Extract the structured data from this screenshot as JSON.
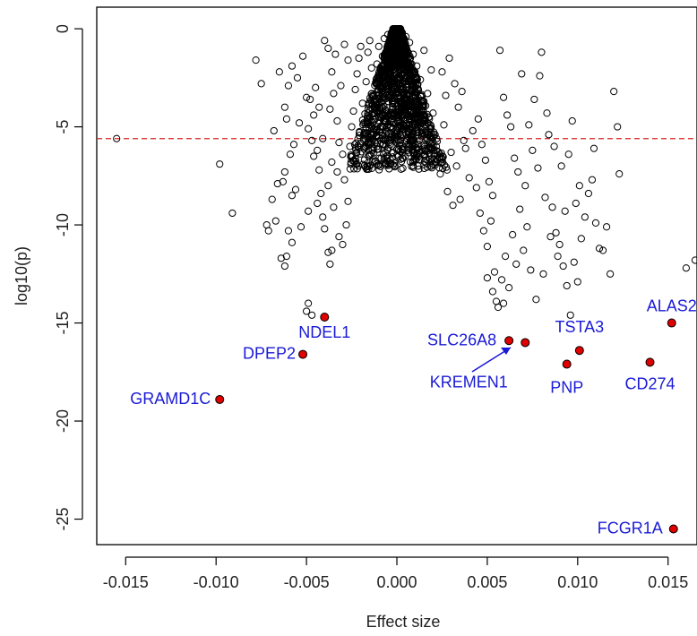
{
  "chart_data": {
    "type": "scatter",
    "title": "",
    "xlabel": "Effect size",
    "ylabel": "log10(p)",
    "xlim": [
      -0.0166,
      0.0166
    ],
    "ylim": [
      -26.3,
      1.1
    ],
    "xticks": [
      {
        "value": -0.015,
        "label": "-0.015"
      },
      {
        "value": -0.01,
        "label": "-0.010"
      },
      {
        "value": -0.005,
        "label": "-0.005"
      },
      {
        "value": 0.0,
        "label": "0.000"
      },
      {
        "value": 0.005,
        "label": "0.005"
      },
      {
        "value": 0.01,
        "label": "0.010"
      },
      {
        "value": 0.015,
        "label": "0.015"
      }
    ],
    "yticks": [
      {
        "value": 0,
        "label": "0"
      },
      {
        "value": -5,
        "label": "-5"
      },
      {
        "value": -10,
        "label": "-10"
      },
      {
        "value": -15,
        "label": "-15"
      },
      {
        "value": -20,
        "label": "-20"
      },
      {
        "value": -25,
        "label": "-25"
      }
    ],
    "threshold": -5.6,
    "grid": false,
    "colors": {
      "open_point": "#000000",
      "highlight_fill": "#e00000",
      "label": "#1a1ad6",
      "threshold": "#d62020"
    },
    "highlighted": [
      {
        "gene": "NDEL1",
        "x": -0.004,
        "y": -14.7
      },
      {
        "gene": "DPEP2",
        "x": -0.0052,
        "y": -16.6
      },
      {
        "gene": "GRAMD1C",
        "x": -0.0098,
        "y": -18.9
      },
      {
        "gene": "SLC26A8",
        "x": 0.0062,
        "y": -15.9
      },
      {
        "gene": "KREMEN1",
        "x": 0.0071,
        "y": -16.0
      },
      {
        "gene": "TSTA3",
        "x": 0.0101,
        "y": -16.4
      },
      {
        "gene": "PNP",
        "x": 0.0094,
        "y": -17.1
      },
      {
        "gene": "CD274",
        "x": 0.014,
        "y": -17.0
      },
      {
        "gene": "ALAS2",
        "x": 0.0152,
        "y": -15.0
      },
      {
        "gene": "FCGR1A",
        "x": 0.0153,
        "y": -25.5
      }
    ],
    "points": [
      [
        -0.0155,
        -5.6
      ],
      [
        -0.0091,
        -9.4
      ],
      [
        -0.0098,
        -6.9
      ],
      [
        -0.0078,
        -1.6
      ],
      [
        -0.0075,
        -2.8
      ],
      [
        -0.0072,
        -10.0
      ],
      [
        -0.0071,
        -10.3
      ],
      [
        -0.006,
        -2.9
      ],
      [
        -0.0062,
        -4.0
      ],
      [
        -0.0058,
        -1.9
      ],
      [
        -0.0055,
        -2.5
      ],
      [
        -0.0052,
        -1.4
      ],
      [
        -0.0056,
        -8.2
      ],
      [
        -0.0058,
        -8.5
      ],
      [
        -0.0062,
        -7.3
      ],
      [
        -0.0063,
        -7.8
      ],
      [
        -0.0058,
        -10.9
      ],
      [
        -0.0064,
        -11.7
      ],
      [
        -0.0062,
        -12.1
      ],
      [
        -0.0061,
        -11.6
      ],
      [
        -0.006,
        -10.3
      ],
      [
        -0.0053,
        -10.1
      ],
      [
        -0.0049,
        -9.3
      ],
      [
        -0.005,
        -14.4
      ],
      [
        -0.0049,
        -14.0
      ],
      [
        -0.0047,
        -14.6
      ],
      [
        -0.0049,
        -5.1
      ],
      [
        -0.0047,
        -5.7
      ],
      [
        -0.0046,
        -6.5
      ],
      [
        -0.0044,
        -6.2
      ],
      [
        -0.0043,
        -7.2
      ],
      [
        -0.0042,
        -8.4
      ],
      [
        -0.004,
        -10.2
      ],
      [
        -0.0038,
        -11.4
      ],
      [
        -0.0037,
        -12.0
      ],
      [
        -0.0036,
        -11.3
      ],
      [
        -0.0035,
        -9.1
      ],
      [
        -0.0032,
        -10.6
      ],
      [
        -0.003,
        -11.0
      ],
      [
        -0.0028,
        -10.0
      ],
      [
        -0.0033,
        -7.3
      ],
      [
        -0.0036,
        -6.8
      ],
      [
        -0.0038,
        -8.0
      ],
      [
        -0.0041,
        -9.6
      ],
      [
        -0.0044,
        -8.9
      ],
      [
        -0.0046,
        -4.4
      ],
      [
        -0.0048,
        -3.6
      ],
      [
        -0.0045,
        -3.0
      ],
      [
        -0.0043,
        -4.0
      ],
      [
        -0.0041,
        -5.6
      ],
      [
        -0.004,
        -0.6
      ],
      [
        -0.0038,
        -1.0
      ],
      [
        -0.0036,
        -2.2
      ],
      [
        -0.0035,
        -3.3
      ],
      [
        -0.0033,
        -4.7
      ],
      [
        -0.0032,
        -5.8
      ],
      [
        -0.003,
        -6.4
      ],
      [
        -0.0029,
        -7.7
      ],
      [
        -0.0027,
        -8.8
      ],
      [
        -0.0026,
        -6.0
      ],
      [
        -0.0025,
        -5.0
      ],
      [
        -0.0024,
        -4.2
      ],
      [
        -0.0023,
        -3.1
      ],
      [
        -0.0022,
        -2.3
      ],
      [
        -0.0021,
        -1.5
      ],
      [
        -0.002,
        -0.9
      ],
      [
        -0.0019,
        -3.8
      ],
      [
        -0.0018,
        -5.3
      ],
      [
        -0.0017,
        -2.7
      ],
      [
        -0.0016,
        -1.2
      ],
      [
        -0.0015,
        -0.6
      ],
      [
        -0.0014,
        -2.0
      ],
      [
        -0.0013,
        -3.4
      ],
      [
        -0.0012,
        -4.6
      ],
      [
        -0.0011,
        -1.8
      ],
      [
        -0.001,
        -0.9
      ],
      [
        -0.0009,
        -2.6
      ],
      [
        -0.0008,
        -1.4
      ],
      [
        -0.0007,
        -0.5
      ],
      [
        -0.0006,
        -1.7
      ],
      [
        -0.0005,
        -0.3
      ],
      [
        -0.0004,
        -1.0
      ],
      [
        -0.0003,
        -0.2
      ],
      [
        -0.0002,
        -0.6
      ],
      [
        -0.0001,
        -0.1
      ],
      [
        0.0001,
        -0.1
      ],
      [
        0.0002,
        -0.5
      ],
      [
        0.0003,
        -0.2
      ],
      [
        0.0004,
        -1.1
      ],
      [
        0.0005,
        -0.4
      ],
      [
        0.0006,
        -1.8
      ],
      [
        0.0007,
        -0.7
      ],
      [
        0.0008,
        -2.4
      ],
      [
        0.0009,
        -1.3
      ],
      [
        0.001,
        -3.0
      ],
      [
        0.0011,
        -1.9
      ],
      [
        0.0012,
        -3.9
      ],
      [
        0.0013,
        -2.6
      ],
      [
        0.0014,
        -4.6
      ],
      [
        0.0015,
        -1.1
      ],
      [
        0.0016,
        -5.2
      ],
      [
        0.0017,
        -3.3
      ],
      [
        0.0018,
        -6.0
      ],
      [
        0.0019,
        -2.1
      ],
      [
        0.002,
        -4.3
      ],
      [
        -0.0027,
        -1.6
      ],
      [
        -0.0029,
        -0.8
      ],
      [
        -0.0031,
        -2.9
      ],
      [
        -0.0034,
        -1.3
      ],
      [
        -0.0037,
        -4.1
      ],
      [
        0.002,
        -6.9
      ],
      [
        0.0022,
        -5.6
      ],
      [
        0.0024,
        -7.4
      ],
      [
        0.0026,
        -4.9
      ],
      [
        0.0028,
        -8.3
      ],
      [
        0.003,
        -6.3
      ],
      [
        0.0031,
        -9.0
      ],
      [
        0.0033,
        -7.0
      ],
      [
        0.0035,
        -8.7
      ],
      [
        0.0037,
        -5.7
      ],
      [
        0.0025,
        -2.2
      ],
      [
        0.0027,
        -3.4
      ],
      [
        0.0029,
        -1.5
      ],
      [
        0.0032,
        -2.8
      ],
      [
        0.0034,
        -4.0
      ],
      [
        0.0036,
        -3.2
      ],
      [
        0.0038,
        -6.1
      ],
      [
        0.004,
        -7.6
      ],
      [
        0.0042,
        -5.2
      ],
      [
        0.0044,
        -8.1
      ],
      [
        0.0046,
        -9.4
      ],
      [
        0.0048,
        -10.3
      ],
      [
        0.005,
        -11.1
      ],
      [
        0.0052,
        -9.8
      ],
      [
        0.0054,
        -12.4
      ],
      [
        0.0055,
        -13.9
      ],
      [
        0.0056,
        -14.2
      ],
      [
        0.0058,
        -12.8
      ],
      [
        0.006,
        -11.6
      ],
      [
        0.0062,
        -13.2
      ],
      [
        0.0064,
        -10.5
      ],
      [
        0.0066,
        -12.0
      ],
      [
        0.0068,
        -9.2
      ],
      [
        0.007,
        -11.3
      ],
      [
        0.0072,
        -10.1
      ],
      [
        0.0045,
        -4.6
      ],
      [
        0.0047,
        -5.9
      ],
      [
        0.0049,
        -6.7
      ],
      [
        0.0051,
        -7.8
      ],
      [
        0.0053,
        -8.5
      ],
      [
        0.0057,
        -1.1
      ],
      [
        0.0059,
        -3.5
      ],
      [
        0.0061,
        -4.4
      ],
      [
        0.0063,
        -5.0
      ],
      [
        0.0065,
        -6.6
      ],
      [
        0.0067,
        -7.3
      ],
      [
        0.0069,
        -2.3
      ],
      [
        0.0071,
        -8.0
      ],
      [
        0.0073,
        -4.9
      ],
      [
        0.0075,
        -6.2
      ],
      [
        0.0076,
        -3.6
      ],
      [
        0.0078,
        -7.1
      ],
      [
        0.008,
        -1.2
      ],
      [
        0.0082,
        -8.6
      ],
      [
        0.0084,
        -5.4
      ],
      [
        0.0086,
        -9.1
      ],
      [
        0.0088,
        -10.4
      ],
      [
        0.009,
        -11.0
      ],
      [
        0.0092,
        -12.1
      ],
      [
        0.0094,
        -13.1
      ],
      [
        0.0096,
        -14.6
      ],
      [
        0.0098,
        -11.9
      ],
      [
        0.01,
        -12.9
      ],
      [
        0.0102,
        -10.7
      ],
      [
        0.0104,
        -9.6
      ],
      [
        0.0106,
        -8.4
      ],
      [
        0.0108,
        -7.7
      ],
      [
        0.011,
        -9.9
      ],
      [
        0.0112,
        -11.2
      ],
      [
        0.0114,
        -11.3
      ],
      [
        0.0116,
        -10.1
      ],
      [
        0.0118,
        -12.5
      ],
      [
        0.012,
        -3.2
      ],
      [
        0.0122,
        -5.0
      ],
      [
        0.0123,
        -7.4
      ],
      [
        0.0079,
        -2.4
      ],
      [
        0.0083,
        -4.3
      ],
      [
        0.0087,
        -6.0
      ],
      [
        0.0091,
        -7.0
      ],
      [
        0.0095,
        -6.4
      ],
      [
        0.0099,
        -8.9
      ],
      [
        0.0093,
        -9.3
      ],
      [
        0.0089,
        -11.6
      ],
      [
        0.0085,
        -10.6
      ],
      [
        0.0081,
        -12.5
      ],
      [
        0.0077,
        -13.8
      ],
      [
        0.0074,
        -12.3
      ],
      [
        0.0059,
        -14.0
      ],
      [
        0.0053,
        -13.4
      ],
      [
        0.005,
        -12.7
      ],
      [
        0.016,
        -12.2
      ],
      [
        0.0165,
        -11.8
      ],
      [
        0.0101,
        -8.0
      ],
      [
        0.0097,
        -4.7
      ],
      [
        0.0109,
        -6.1
      ],
      [
        -0.005,
        -3.5
      ],
      [
        -0.0054,
        -4.8
      ],
      [
        -0.0057,
        -5.9
      ],
      [
        -0.0065,
        -2.2
      ],
      [
        -0.0068,
        -5.2
      ],
      [
        -0.0066,
        -7.9
      ],
      [
        -0.0069,
        -8.7
      ],
      [
        -0.0067,
        -9.8
      ],
      [
        -0.0059,
        -6.4
      ],
      [
        -0.0061,
        -4.6
      ]
    ]
  }
}
